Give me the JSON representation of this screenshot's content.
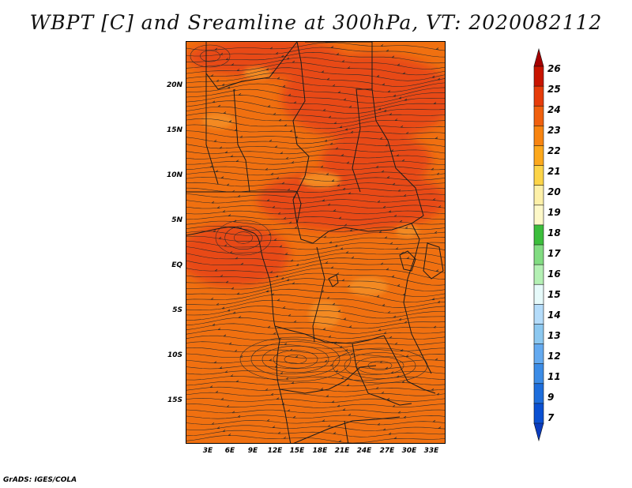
{
  "title": "WBPT [C] and Sreamline at 300hPa, VT: 2020082112",
  "footer": "GrADS: IGES/COLA",
  "map": {
    "lat_ticks": [
      "20N",
      "15N",
      "10N",
      "5N",
      "EQ",
      "5S",
      "10S",
      "15S"
    ],
    "lon_ticks": [
      "3E",
      "6E",
      "9E",
      "12E",
      "15E",
      "18E",
      "21E",
      "24E",
      "27E",
      "30E",
      "33E"
    ],
    "colors": {
      "base": "#f07010",
      "warm": "#e84a12",
      "hot": "#f38a20"
    }
  },
  "colorbar": {
    "labels": [
      "26",
      "25",
      "24",
      "23",
      "22",
      "21",
      "20",
      "19",
      "18",
      "17",
      "16",
      "15",
      "14",
      "13",
      "12",
      "11",
      "9",
      "7"
    ],
    "colors": [
      "#a50000",
      "#c81400",
      "#e63c0a",
      "#f0600e",
      "#f88410",
      "#fca81c",
      "#fcd448",
      "#fdf0a8",
      "#fdf8c8",
      "#3cbe3c",
      "#82dc82",
      "#b4f0b4",
      "#e6fafa",
      "#b4dcfa",
      "#8cc8f0",
      "#64aaf0",
      "#3c8ce6",
      "#1e6edc",
      "#0a50d2",
      "#0a3cbe"
    ]
  }
}
